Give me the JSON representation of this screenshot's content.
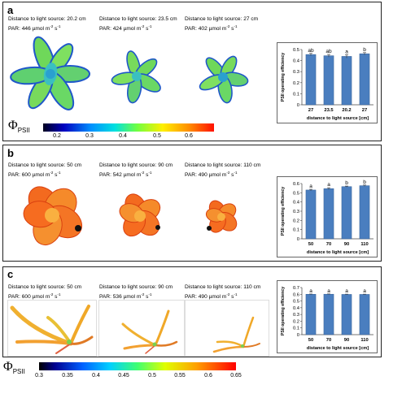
{
  "panels": [
    {
      "label": "a",
      "images": [
        {
          "distance": "Distance to light source: 20.2 cm",
          "par": "PAR: 446 µmol m",
          "par_exp1": "-2",
          "par_s": " s",
          "par_exp2": "-1"
        },
        {
          "distance": "Distance to light source: 23.5 cm",
          "par": "PAR: 424 µmol m",
          "par_exp1": "-2",
          "par_s": " s",
          "par_exp2": "-1"
        },
        {
          "distance": "Distance to light source: 27 cm",
          "par": "PAR: 402 µmol m",
          "par_exp1": "-2",
          "par_s": " s",
          "par_exp2": "-1"
        }
      ],
      "colorbar": {
        "symbol": "Φ",
        "subscript": "PSII",
        "ticks": [
          "0.2",
          "0.3",
          "0.4",
          "0.5",
          "0.6"
        ]
      }
    },
    {
      "label": "b",
      "images": [
        {
          "distance": "Distance to light source: 50 cm",
          "par": "PAR: 600 µmol m",
          "par_exp1": "-2",
          "par_s": " s",
          "par_exp2": "-1"
        },
        {
          "distance": "Distance to light source: 90 cm",
          "par": "PAR: 542 µmol m",
          "par_exp1": "-2",
          "par_s": " s",
          "par_exp2": "-1"
        },
        {
          "distance": "Distance to light source: 110 cm",
          "par": "PAR: 490 µmol m",
          "par_exp1": "-2",
          "par_s": " s",
          "par_exp2": "-1"
        }
      ]
    },
    {
      "label": "c",
      "images": [
        {
          "distance": "Distance to light source: 50 cm",
          "par": "PAR: 600 µmol m",
          "par_exp1": "-2",
          "par_s": " s",
          "par_exp2": "-1"
        },
        {
          "distance": "Distance to light source: 90 cm",
          "par": "PAR: 536 µmol m",
          "par_exp1": "-2",
          "par_s": " s",
          "par_exp2": "-1"
        },
        {
          "distance": "Distance to light source: 110 cm",
          "par": "PAR: 490 µmol m",
          "par_exp1": "-2",
          "par_s": " s",
          "par_exp2": "-1"
        }
      ],
      "colorbar": {
        "symbol": "Φ",
        "subscript": "PSII",
        "ticks": [
          "0.3",
          "0.35",
          "0.4",
          "0.45",
          "0.5",
          "0.55",
          "0.6",
          "0.65"
        ]
      }
    }
  ],
  "colors": {
    "bar": "#4a7ebf",
    "bar_edge": "#365f94",
    "panel_border": "#222222"
  },
  "chart_data": [
    {
      "type": "bar",
      "categories": [
        "27",
        "23.5",
        "20.2",
        "27"
      ],
      "values": [
        0.455,
        0.444,
        0.438,
        0.462
      ],
      "errors": [
        0.01,
        0.012,
        0.015,
        0.01
      ],
      "letters": [
        "ab",
        "ab",
        "a",
        "b"
      ],
      "ylim": [
        0,
        0.5
      ],
      "yticks": [
        "0",
        "0.1",
        "0.2",
        "0.3",
        "0.4",
        "0.5"
      ],
      "xlabel": "distance to light source [cm]",
      "ylabel": "PSII operating efficiency"
    },
    {
      "type": "bar",
      "categories": [
        "50",
        "70",
        "90",
        "110"
      ],
      "values": [
        0.53,
        0.545,
        0.567,
        0.577
      ],
      "errors": [
        0.008,
        0.01,
        0.006,
        0.007
      ],
      "letters": [
        "a",
        "a",
        "b",
        "b"
      ],
      "ylim": [
        0,
        0.6
      ],
      "yticks": [
        "0",
        "0.1",
        "0.2",
        "0.3",
        "0.4",
        "0.5",
        "0.6"
      ],
      "xlabel": "distance to light source [cm]",
      "ylabel": "PSII operating efficiency"
    },
    {
      "type": "bar",
      "categories": [
        "50",
        "70",
        "90",
        "110"
      ],
      "values": [
        0.6,
        0.601,
        0.598,
        0.598
      ],
      "errors": [
        0.004,
        0.004,
        0.004,
        0.004
      ],
      "letters": [
        "a",
        "a",
        "a",
        "a"
      ],
      "ylim": [
        0,
        0.7
      ],
      "yticks": [
        "0",
        "0.1",
        "0.2",
        "0.3",
        "0.4",
        "0.5",
        "0.6",
        "0.7"
      ],
      "xlabel": "distance to light source [cm]",
      "ylabel": "PSII operating efficiency"
    }
  ]
}
